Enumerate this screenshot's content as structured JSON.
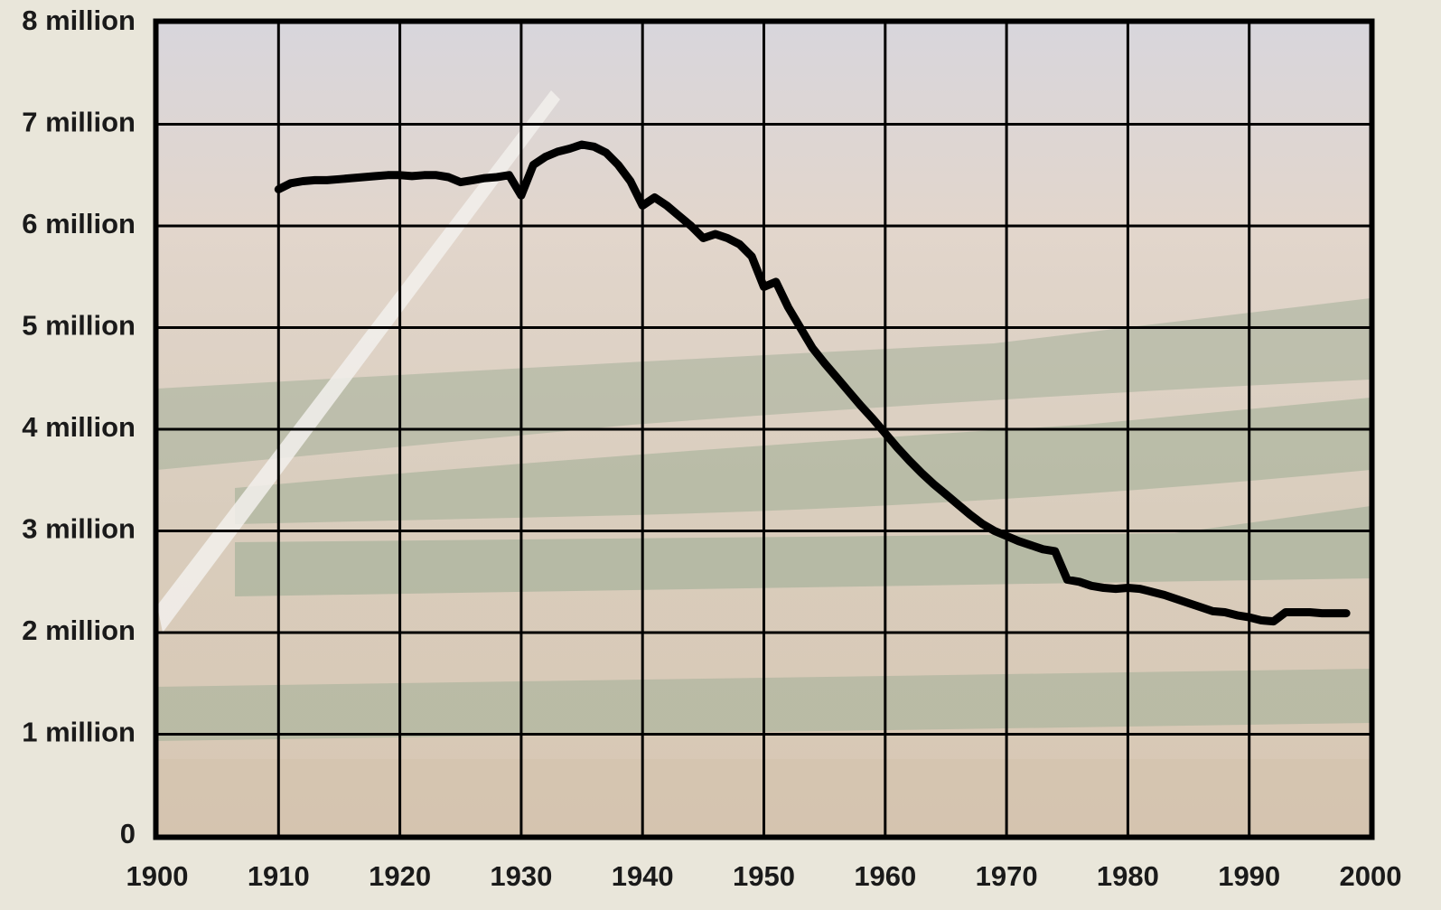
{
  "chart_data": {
    "type": "line",
    "x": [
      1910,
      1911,
      1912,
      1913,
      1914,
      1915,
      1916,
      1917,
      1918,
      1919,
      1920,
      1921,
      1922,
      1923,
      1924,
      1925,
      1926,
      1927,
      1928,
      1929,
      1930,
      1931,
      1932,
      1933,
      1934,
      1935,
      1936,
      1937,
      1938,
      1939,
      1940,
      1941,
      1942,
      1943,
      1944,
      1945,
      1946,
      1947,
      1948,
      1949,
      1950,
      1951,
      1952,
      1953,
      1954,
      1955,
      1956,
      1957,
      1958,
      1959,
      1960,
      1961,
      1962,
      1963,
      1964,
      1965,
      1966,
      1967,
      1968,
      1969,
      1970,
      1971,
      1972,
      1973,
      1974,
      1975,
      1976,
      1977,
      1978,
      1979,
      1980,
      1981,
      1982,
      1983,
      1984,
      1985,
      1986,
      1987,
      1988,
      1989,
      1990,
      1991,
      1992,
      1993,
      1994,
      1995,
      1996,
      1997,
      1998
    ],
    "series": [
      {
        "color": "#000000",
        "values": [
          6360000,
          6420000,
          6440000,
          6450000,
          6450000,
          6460000,
          6470000,
          6480000,
          6490000,
          6500000,
          6500000,
          6490000,
          6500000,
          6500000,
          6480000,
          6430000,
          6450000,
          6470000,
          6480000,
          6500000,
          6300000,
          6600000,
          6680000,
          6730000,
          6760000,
          6800000,
          6780000,
          6720000,
          6600000,
          6440000,
          6200000,
          6280000,
          6200000,
          6100000,
          6000000,
          5880000,
          5920000,
          5880000,
          5820000,
          5700000,
          5400000,
          5450000,
          5200000,
          5000000,
          4800000,
          4650000,
          4510000,
          4370000,
          4230000,
          4100000,
          3960000,
          3820000,
          3690000,
          3570000,
          3460000,
          3360000,
          3260000,
          3160000,
          3070000,
          3000000,
          2950000,
          2900000,
          2860000,
          2820000,
          2800000,
          2520000,
          2500000,
          2460000,
          2440000,
          2430000,
          2440000,
          2430000,
          2400000,
          2370000,
          2330000,
          2290000,
          2250000,
          2210000,
          2200000,
          2170000,
          2150000,
          2120000,
          2110000,
          2200000,
          2200000,
          2200000,
          2190000,
          2190000,
          2190000
        ]
      }
    ],
    "xlim": [
      1900,
      2000
    ],
    "xticks": [
      1900,
      1910,
      1920,
      1930,
      1940,
      1950,
      1960,
      1970,
      1980,
      1990,
      2000
    ],
    "ylim": [
      0,
      8000000
    ],
    "yticks": [
      0,
      {
        "value": 1000000,
        "label": "1 million"
      },
      {
        "value": 2000000,
        "label": "2 million"
      },
      {
        "value": 3000000,
        "label": "3 million"
      },
      {
        "value": 4000000,
        "label": "4 million"
      },
      {
        "value": 5000000,
        "label": "5 million"
      },
      {
        "value": 6000000,
        "label": "6 million"
      },
      {
        "value": 7000000,
        "label": "7 million"
      },
      {
        "value": 8000000,
        "label": "8 million"
      }
    ],
    "grid": true
  }
}
